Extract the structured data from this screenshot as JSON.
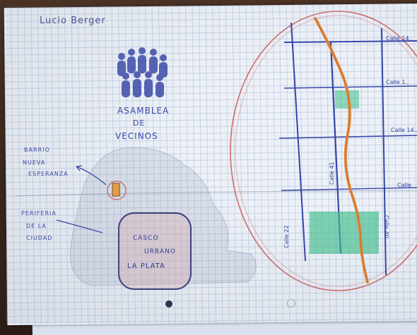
{
  "photo": {
    "subject": "hand-drawn-map-on-graph-paper",
    "author": "Lucio Berger",
    "labels": {
      "asamblea_line1": "ASAMBLEA",
      "asamblea_line2": "DE",
      "asamblea_line3": "VECINOS",
      "barrio_line1": "BARRIO",
      "barrio_line2": "NUEVA",
      "barrio_line3": "ESPERANZA",
      "periferia_line1": "PERIFERIA",
      "periferia_line2": "DE LA",
      "periferia_line3": "CIUDAD",
      "casco_line1": "CASCO",
      "casco_line2": "URBANO",
      "casco_line3": "LA PLATA"
    },
    "streets": {
      "s1": "Calle 14..",
      "s2": "Calle 1..",
      "s3": "Calle 14..",
      "s4": "Calle",
      "s5": "Calle 41",
      "s6": "Calle 22",
      "s7": "Calle 40"
    },
    "colors": {
      "ink": "#3a4aa8",
      "red_pencil": "#d06a6a",
      "orange_route": "#e08c3a",
      "green_area": "#3fbf8c"
    },
    "icons": [
      "people-group-icon",
      "house-marker-icon"
    ]
  }
}
